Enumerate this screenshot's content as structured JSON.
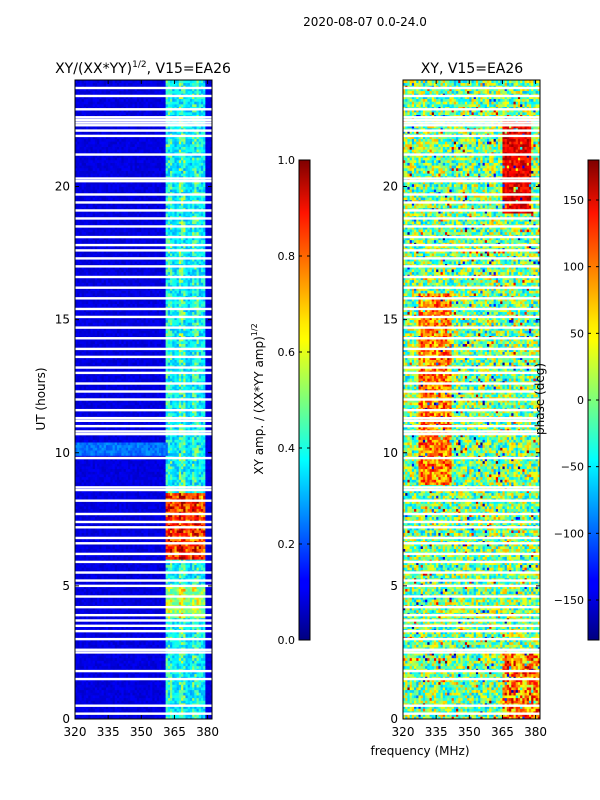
{
  "figure": {
    "suptitle": "2020-08-07 0.0-24.0",
    "xlabel": "frequency (MHz)"
  },
  "chart_data": [
    {
      "type": "heatmap",
      "title_main": "XY/(XX*YY)",
      "title_sup": "1/2",
      "title_tail": ", V15=EA26",
      "xlabel": "",
      "ylabel": "UT (hours)",
      "xlim": [
        320,
        382
      ],
      "ylim": [
        0,
        24
      ],
      "xticks": [
        "320",
        "335",
        "350",
        "365",
        "380"
      ],
      "xtick_values": [
        320,
        335,
        350,
        365,
        380
      ],
      "yticks": [
        "0",
        "5",
        "10",
        "15",
        "20"
      ],
      "ytick_values": [
        0,
        5,
        10,
        15,
        20
      ],
      "colormap": "jet",
      "colorbar": {
        "label_main": "XY amp. / (XX*YY amp)",
        "label_sup": "1/2",
        "ticks": [
          "0.0",
          "0.2",
          "0.4",
          "0.6",
          "0.8",
          "1.0"
        ],
        "tick_values": [
          0.0,
          0.2,
          0.4,
          0.6,
          0.8,
          1.0
        ],
        "range": [
          0,
          1
        ]
      },
      "description": "Low amplitude (~0.05) below 360 MHz; higher amplitude (0.3-0.9) in 360-380 MHz band, strongest ~6-8.5 UT; bright horizontal feature near 10.2 UT."
    },
    {
      "type": "heatmap",
      "title_main": "XY, V15=EA26",
      "title_sup": "",
      "title_tail": "",
      "xlabel": "",
      "ylabel": "",
      "xlim": [
        320,
        382
      ],
      "ylim": [
        0,
        24
      ],
      "xticks": [
        "320",
        "335",
        "350",
        "365",
        "380"
      ],
      "xtick_values": [
        320,
        335,
        350,
        365,
        380
      ],
      "yticks": [
        "0",
        "5",
        "10",
        "15",
        "20"
      ],
      "ytick_values": [
        0,
        5,
        10,
        15,
        20
      ],
      "colormap": "jet",
      "colorbar": {
        "label_main": "phase (deg)",
        "label_sup": "",
        "ticks": [
          "−150",
          "−100",
          "−50",
          "0",
          "50",
          "100",
          "150"
        ],
        "tick_values": [
          -150,
          -100,
          -50,
          0,
          50,
          100,
          150
        ],
        "range": [
          -180,
          180
        ]
      },
      "description": "Noisy phase; red patch (~120-160 deg) at 365-378 MHz, 19-22.5 UT; warm band at 330-340 MHz, 9-16 UT."
    }
  ],
  "flagged_rows_ut": [
    0.2,
    0.5,
    1.5,
    1.8,
    2.5,
    2.6,
    3.0,
    3.3,
    3.5,
    3.7,
    3.9,
    4.2,
    4.6,
    5.0,
    5.2,
    5.5,
    5.9,
    6.2,
    6.6,
    6.8,
    7.2,
    7.4,
    7.7,
    8.2,
    8.6,
    8.7,
    9.8,
    10.7,
    10.8,
    11.0,
    11.2,
    11.3,
    11.6,
    12.0,
    12.3,
    12.6,
    13.0,
    13.2,
    13.6,
    13.9,
    14.3,
    14.7,
    15.1,
    15.4,
    15.8,
    16.2,
    16.6,
    17.0,
    17.3,
    17.6,
    17.8,
    18.1,
    18.5,
    18.8,
    19.1,
    19.4,
    19.7,
    20.2,
    20.3,
    21.2,
    21.9,
    22.1,
    22.3,
    22.4,
    22.5,
    22.6,
    22.9,
    23.4,
    23.7
  ]
}
